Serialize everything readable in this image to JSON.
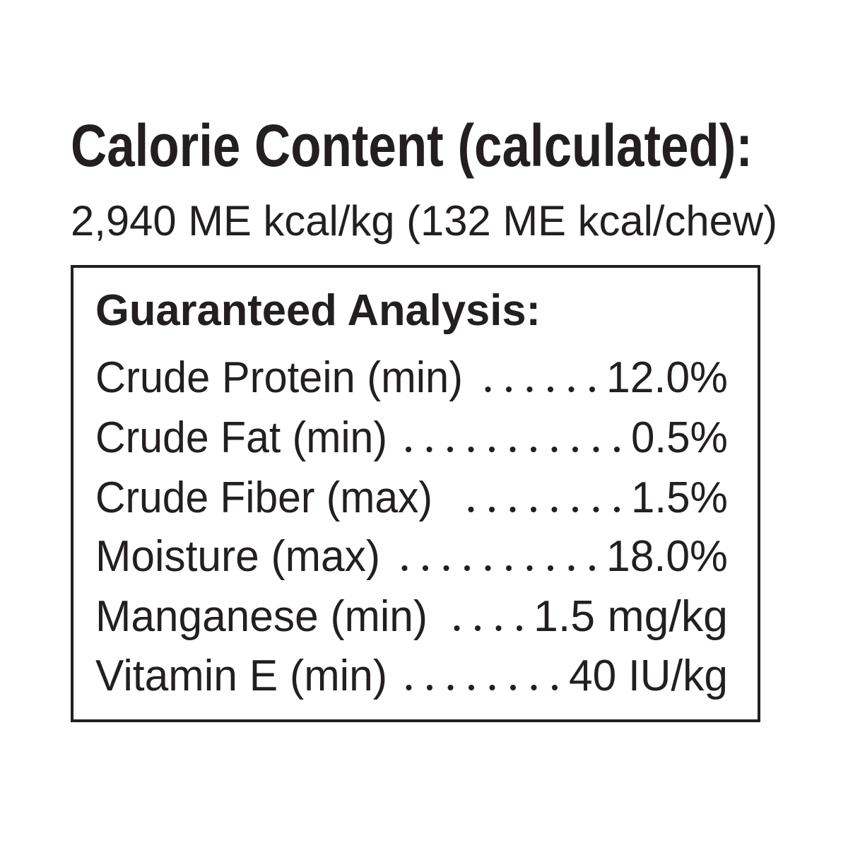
{
  "header": {
    "title": "Calorie Content (calculated):",
    "subtitle": "2,940 ME kcal/kg (132 ME kcal/chew)"
  },
  "analysis": {
    "title": "Guaranteed Analysis:",
    "rows": [
      {
        "label": "Crude Protein (min)",
        "value": "12.0%"
      },
      {
        "label": "Crude Fat (min)",
        "value": "0.5%"
      },
      {
        "label": "Crude Fiber (max)",
        "value": "1.5%"
      },
      {
        "label": "Moisture (max)",
        "value": "18.0%"
      },
      {
        "label": "Manganese (min)",
        "value": "1.5 mg/kg"
      },
      {
        "label": "Vitamin E (min)",
        "value": "40 IU/kg"
      }
    ]
  }
}
